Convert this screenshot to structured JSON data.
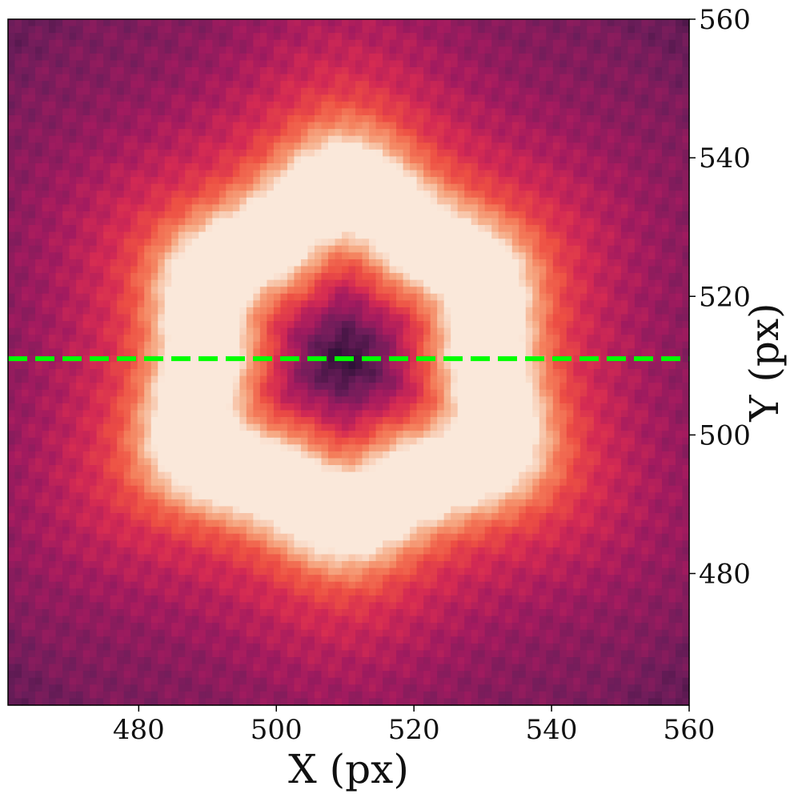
{
  "chart_data": {
    "type": "heatmap",
    "title": "",
    "xlabel": "X (px)",
    "ylabel": "Y (px)",
    "xlim": [
      461,
      560
    ],
    "ylim": [
      461,
      560
    ],
    "x_ticks": [
      480,
      500,
      520,
      540,
      560
    ],
    "y_ticks": [
      480,
      500,
      520,
      540,
      560
    ],
    "y_axis_side": "right",
    "colormap": "rocket",
    "colorbar": false,
    "grid": false,
    "intensity_pattern": {
      "shape": "ring",
      "center": [
        510,
        511
      ],
      "ring_radius_px": 22,
      "core_min_radius_px": 0,
      "description_values": {
        "center_level": 0.0,
        "ring_level": 1.0,
        "edge_level": 0.3
      }
    },
    "annotations": [
      {
        "type": "horizontal_dashed_line",
        "y": 511,
        "color": "#00ff00"
      }
    ]
  }
}
